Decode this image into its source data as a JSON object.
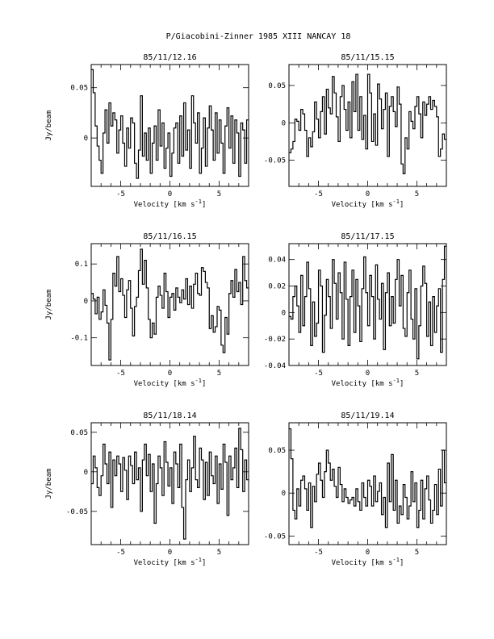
{
  "page_title": "P/Giacobini-Zinner 1985 XIII   NANCAY    18",
  "x_axis_label": "Velocity [km s",
  "x_axis_unit_sup": "-1",
  "x_axis_label_close": "]",
  "y_axis_label": "Jy/beam",
  "chart_data": [
    {
      "type": "line",
      "step": true,
      "title": "85/11/12.16",
      "xlabel": "Velocity [km s-1]",
      "ylabel": "Jy/beam",
      "xlim": [
        -8,
        8
      ],
      "ylim": [
        -0.048,
        0.073
      ],
      "xticks": [
        -5,
        0,
        5
      ],
      "xtick_labels": [
        "-5",
        "0",
        "5"
      ],
      "yticks": [
        0,
        0.05
      ],
      "ytick_labels": [
        "0",
        "0.05"
      ],
      "x": [
        -8.0,
        -7.8,
        -7.6,
        -7.4,
        -7.2,
        -7.0,
        -6.8,
        -6.6,
        -6.4,
        -6.2,
        -6.0,
        -5.8,
        -5.6,
        -5.4,
        -5.2,
        -5.0,
        -4.8,
        -4.6,
        -4.4,
        -4.2,
        -4.0,
        -3.8,
        -3.6,
        -3.4,
        -3.2,
        -3.0,
        -2.8,
        -2.6,
        -2.4,
        -2.2,
        -2.0,
        -1.8,
        -1.6,
        -1.4,
        -1.2,
        -1.0,
        -0.8,
        -0.6,
        -0.4,
        -0.2,
        0.0,
        0.2,
        0.4,
        0.6,
        0.8,
        1.0,
        1.2,
        1.4,
        1.6,
        1.8,
        2.0,
        2.2,
        2.4,
        2.6,
        2.8,
        3.0,
        3.2,
        3.4,
        3.6,
        3.8,
        4.0,
        4.2,
        4.4,
        4.6,
        4.8,
        5.0,
        5.2,
        5.4,
        5.6,
        5.8,
        6.0,
        6.2,
        6.4,
        6.6,
        6.8,
        7.0,
        7.2,
        7.4,
        7.6,
        7.8
      ],
      "y": [
        0.068,
        0.045,
        0.012,
        -0.008,
        -0.022,
        -0.035,
        0.005,
        0.028,
        -0.005,
        0.035,
        0.012,
        0.025,
        0.018,
        -0.015,
        0.008,
        0.022,
        -0.005,
        -0.028,
        0.01,
        -0.01,
        0.02,
        0.015,
        -0.025,
        -0.04,
        -0.012,
        0.042,
        -0.018,
        0.005,
        -0.022,
        0.01,
        -0.035,
        -0.005,
        0.012,
        -0.022,
        0.028,
        -0.008,
        0.015,
        -0.03,
        -0.01,
        0.005,
        -0.038,
        -0.015,
        0.01,
        0.015,
        -0.025,
        0.022,
        -0.018,
        0.035,
        -0.012,
        0.008,
        -0.03,
        0.042,
        0.015,
        -0.005,
        0.025,
        -0.035,
        -0.01,
        0.02,
        -0.028,
        0.01,
        0.032,
        0.008,
        -0.022,
        0.025,
        -0.015,
        0.018,
        -0.005,
        -0.035,
        0.012,
        0.03,
        -0.01,
        0.022,
        -0.025,
        0.018,
        0.005,
        -0.038,
        0.015,
        0.008,
        -0.025,
        0.018
      ]
    },
    {
      "type": "line",
      "step": true,
      "title": "85/11/15.15",
      "xlabel": "Velocity [km s-1]",
      "ylabel": "",
      "xlim": [
        -8,
        8
      ],
      "ylim": [
        -0.085,
        0.078
      ],
      "xticks": [
        -5,
        0,
        5
      ],
      "xtick_labels": [
        "-5",
        "0",
        "5"
      ],
      "yticks": [
        -0.05,
        0,
        0.05
      ],
      "ytick_labels": [
        "-0.05",
        "0",
        "0.05"
      ],
      "x": [
        -8.0,
        -7.8,
        -7.6,
        -7.4,
        -7.2,
        -7.0,
        -6.8,
        -6.6,
        -6.4,
        -6.2,
        -6.0,
        -5.8,
        -5.6,
        -5.4,
        -5.2,
        -5.0,
        -4.8,
        -4.6,
        -4.4,
        -4.2,
        -4.0,
        -3.8,
        -3.6,
        -3.4,
        -3.2,
        -3.0,
        -2.8,
        -2.6,
        -2.4,
        -2.2,
        -2.0,
        -1.8,
        -1.6,
        -1.4,
        -1.2,
        -1.0,
        -0.8,
        -0.6,
        -0.4,
        -0.2,
        0.0,
        0.2,
        0.4,
        0.6,
        0.8,
        1.0,
        1.2,
        1.4,
        1.6,
        1.8,
        2.0,
        2.2,
        2.4,
        2.6,
        2.8,
        3.0,
        3.2,
        3.4,
        3.6,
        3.8,
        4.0,
        4.2,
        4.4,
        4.6,
        4.8,
        5.0,
        5.2,
        5.4,
        5.6,
        5.8,
        6.0,
        6.2,
        6.4,
        6.6,
        6.8,
        7.0,
        7.2,
        7.4,
        7.6,
        7.8
      ],
      "y": [
        -0.04,
        -0.035,
        -0.025,
        0.005,
        0.002,
        -0.01,
        0.018,
        0.012,
        -0.01,
        -0.045,
        -0.02,
        -0.032,
        -0.012,
        0.028,
        0.005,
        -0.02,
        0.015,
        0.035,
        -0.015,
        0.045,
        0.02,
        0.012,
        0.062,
        0.04,
        0.008,
        -0.025,
        0.035,
        0.05,
        0.018,
        -0.01,
        0.028,
        -0.02,
        0.055,
        0.015,
        0.065,
        -0.01,
        0.035,
        -0.022,
        0.01,
        -0.035,
        0.065,
        0.04,
        -0.025,
        0.012,
        -0.03,
        0.052,
        0.032,
        -0.008,
        0.018,
        0.04,
        -0.045,
        0.022,
        0.035,
        0.015,
        -0.005,
        0.048,
        0.025,
        -0.055,
        -0.068,
        -0.02,
        -0.035,
        0.015,
        0.002,
        -0.008,
        0.022,
        0.035,
        0.012,
        -0.02,
        0.028,
        0.01,
        0.025,
        0.035,
        0.018,
        0.03,
        0.022,
        0.008,
        -0.045,
        -0.035,
        -0.015,
        -0.022
      ]
    },
    {
      "type": "line",
      "step": true,
      "title": "85/11/16.15",
      "xlabel": "Velocity [km s-1]",
      "ylabel": "Jy/beam",
      "xlim": [
        -8,
        8
      ],
      "ylim": [
        -0.175,
        0.155
      ],
      "xticks": [
        -5,
        0,
        5
      ],
      "xtick_labels": [
        "-5",
        "0",
        "5"
      ],
      "yticks": [
        -0.1,
        0,
        0.1
      ],
      "ytick_labels": [
        "-0.1",
        "0",
        "0.1"
      ],
      "x": [
        -8.0,
        -7.8,
        -7.6,
        -7.4,
        -7.2,
        -7.0,
        -6.8,
        -6.6,
        -6.4,
        -6.2,
        -6.0,
        -5.8,
        -5.6,
        -5.4,
        -5.2,
        -5.0,
        -4.8,
        -4.6,
        -4.4,
        -4.2,
        -4.0,
        -3.8,
        -3.6,
        -3.4,
        -3.2,
        -3.0,
        -2.8,
        -2.6,
        -2.4,
        -2.2,
        -2.0,
        -1.8,
        -1.6,
        -1.4,
        -1.2,
        -1.0,
        -0.8,
        -0.6,
        -0.4,
        -0.2,
        0.0,
        0.2,
        0.4,
        0.6,
        0.8,
        1.0,
        1.2,
        1.4,
        1.6,
        1.8,
        2.0,
        2.2,
        2.4,
        2.6,
        2.8,
        3.0,
        3.2,
        3.4,
        3.6,
        3.8,
        4.0,
        4.2,
        4.4,
        4.6,
        4.8,
        5.0,
        5.2,
        5.4,
        5.6,
        5.8,
        6.0,
        6.2,
        6.4,
        6.6,
        6.8,
        7.0,
        7.2,
        7.4,
        7.6,
        7.8
      ],
      "y": [
        0.02,
        0.005,
        -0.035,
        0.01,
        -0.05,
        -0.03,
        0.03,
        -0.012,
        -0.06,
        -0.16,
        -0.05,
        0.075,
        0.04,
        0.12,
        0.025,
        0.06,
        0.015,
        -0.045,
        0.03,
        0.055,
        -0.02,
        -0.095,
        -0.015,
        0.01,
        0.082,
        0.14,
        0.045,
        0.11,
        0.035,
        -0.05,
        -0.1,
        -0.06,
        -0.09,
        0.01,
        0.04,
        0.015,
        -0.02,
        0.075,
        0.025,
        -0.045,
        0.01,
        0.02,
        -0.025,
        0.035,
        0.01,
        -0.005,
        0.03,
        0.005,
        0.06,
        -0.01,
        0.04,
        -0.02,
        0.045,
        0.075,
        0.02,
        0.015,
        0.09,
        0.08,
        0.05,
        0.035,
        -0.075,
        -0.04,
        -0.085,
        -0.07,
        -0.015,
        -0.025,
        -0.12,
        -0.14,
        -0.045,
        -0.09,
        0.02,
        0.055,
        0.01,
        0.085,
        0.025,
        0.05,
        -0.01,
        0.12,
        0.055,
        0.035
      ]
    },
    {
      "type": "line",
      "step": true,
      "title": "85/11/17.15",
      "xlabel": "Velocity [km s-1]",
      "ylabel": "",
      "xlim": [
        -8,
        8
      ],
      "ylim": [
        -0.04,
        0.052
      ],
      "xticks": [
        -5,
        0,
        5
      ],
      "xtick_labels": [
        "-5",
        "0",
        "5"
      ],
      "yticks": [
        -0.04,
        -0.02,
        0,
        0.02,
        0.04
      ],
      "ytick_labels": [
        "-0.04",
        "-0.02",
        "0",
        "0.02",
        "0.04"
      ],
      "x": [
        -8.0,
        -7.8,
        -7.6,
        -7.4,
        -7.2,
        -7.0,
        -6.8,
        -6.6,
        -6.4,
        -6.2,
        -6.0,
        -5.8,
        -5.6,
        -5.4,
        -5.2,
        -5.0,
        -4.8,
        -4.6,
        -4.4,
        -4.2,
        -4.0,
        -3.8,
        -3.6,
        -3.4,
        -3.2,
        -3.0,
        -2.8,
        -2.6,
        -2.4,
        -2.2,
        -2.0,
        -1.8,
        -1.6,
        -1.4,
        -1.2,
        -1.0,
        -0.8,
        -0.6,
        -0.4,
        -0.2,
        0.0,
        0.2,
        0.4,
        0.6,
        0.8,
        1.0,
        1.2,
        1.4,
        1.6,
        1.8,
        2.0,
        2.2,
        2.4,
        2.6,
        2.8,
        3.0,
        3.2,
        3.4,
        3.6,
        3.8,
        4.0,
        4.2,
        4.4,
        4.6,
        4.8,
        5.0,
        5.2,
        5.4,
        5.6,
        5.8,
        6.0,
        6.2,
        6.4,
        6.6,
        6.8,
        7.0,
        7.2,
        7.4,
        7.6,
        7.8
      ],
      "y": [
        -0.003,
        -0.005,
        0.012,
        0.02,
        0.005,
        -0.015,
        0.028,
        -0.01,
        0.012,
        0.038,
        0.018,
        -0.025,
        0.008,
        -0.018,
        -0.008,
        0.032,
        0.02,
        -0.03,
        -0.002,
        0.025,
        0.012,
        -0.012,
        0.04,
        0.022,
        -0.005,
        0.03,
        0.015,
        -0.02,
        0.038,
        0.01,
        -0.025,
        0.012,
        0.032,
        -0.015,
        0.025,
        0.005,
        -0.022,
        0.018,
        0.042,
        0.015,
        -0.01,
        0.028,
        0.012,
        -0.02,
        0.036,
        0.01,
        -0.005,
        0.022,
        -0.028,
        0.015,
        0.03,
        -0.01,
        0.012,
        -0.008,
        0.025,
        0.04,
        0.005,
        0.028,
        -0.012,
        -0.018,
        0.015,
        0.032,
        -0.005,
        -0.02,
        0.018,
        -0.035,
        -0.01,
        0.02,
        0.035,
        0.022,
        -0.018,
        0.008,
        -0.025,
        0.012,
        -0.015,
        0.005,
        0.018,
        -0.03,
        0.025,
        0.05
      ]
    },
    {
      "type": "line",
      "step": true,
      "title": "85/11/18.14",
      "xlabel": "Velocity [km s-1]",
      "ylabel": "Jy/beam",
      "xlim": [
        -8,
        8
      ],
      "ylim": [
        -0.092,
        0.062
      ],
      "xticks": [
        -5,
        0,
        5
      ],
      "xtick_labels": [
        "-5",
        "0",
        "5"
      ],
      "yticks": [
        -0.05,
        0,
        0.05
      ],
      "ytick_labels": [
        "-0.05",
        "0",
        "0.05"
      ],
      "x": [
        -8.0,
        -7.8,
        -7.6,
        -7.4,
        -7.2,
        -7.0,
        -6.8,
        -6.6,
        -6.4,
        -6.2,
        -6.0,
        -5.8,
        -5.6,
        -5.4,
        -5.2,
        -5.0,
        -4.8,
        -4.6,
        -4.4,
        -4.2,
        -4.0,
        -3.8,
        -3.6,
        -3.4,
        -3.2,
        -3.0,
        -2.8,
        -2.6,
        -2.4,
        -2.2,
        -2.0,
        -1.8,
        -1.6,
        -1.4,
        -1.2,
        -1.0,
        -0.8,
        -0.6,
        -0.4,
        -0.2,
        0.0,
        0.2,
        0.4,
        0.6,
        0.8,
        1.0,
        1.2,
        1.4,
        1.6,
        1.8,
        2.0,
        2.2,
        2.4,
        2.6,
        2.8,
        3.0,
        3.2,
        3.4,
        3.6,
        3.8,
        4.0,
        4.2,
        4.4,
        4.6,
        4.8,
        5.0,
        5.2,
        5.4,
        5.6,
        5.8,
        6.0,
        6.2,
        6.4,
        6.6,
        6.8,
        7.0,
        7.2,
        7.4,
        7.6,
        7.8
      ],
      "y": [
        -0.015,
        0.02,
        0.005,
        -0.02,
        -0.03,
        -0.005,
        0.035,
        0.01,
        -0.015,
        0.025,
        -0.045,
        0.015,
        -0.005,
        0.02,
        0.01,
        -0.025,
        0.018,
        0.002,
        -0.035,
        0.02,
        0.008,
        -0.015,
        0.025,
        -0.01,
        0.005,
        -0.05,
        0.015,
        0.035,
        -0.005,
        0.022,
        -0.025,
        0.01,
        -0.065,
        -0.015,
        0.02,
        0.005,
        -0.03,
        0.038,
        0.012,
        -0.018,
        0.005,
        -0.04,
        0.025,
        0.01,
        -0.02,
        0.035,
        -0.045,
        -0.085,
        -0.01,
        0.015,
        -0.025,
        0.005,
        0.045,
        -0.01,
        -0.02,
        0.03,
        0.015,
        -0.035,
        0.012,
        -0.03,
        0.025,
        -0.005,
        -0.015,
        0.02,
        -0.04,
        0.01,
        -0.022,
        0.035,
        0.012,
        -0.055,
        0.02,
        -0.01,
        0.005,
        0.03,
        -0.02,
        0.055,
        0.028,
        -0.025,
        0.015,
        -0.01
      ]
    },
    {
      "type": "line",
      "step": true,
      "title": "85/11/19.14",
      "xlabel": "Velocity [km s-1]",
      "ylabel": "",
      "xlim": [
        -8,
        8
      ],
      "ylim": [
        -0.06,
        0.082
      ],
      "xticks": [
        -5,
        0,
        5
      ],
      "xtick_labels": [
        "-5",
        "0",
        "5"
      ],
      "yticks": [
        -0.05,
        0,
        0.05
      ],
      "ytick_labels": [
        "-0.05",
        "0",
        "0.05"
      ],
      "x": [
        -8.0,
        -7.8,
        -7.6,
        -7.4,
        -7.2,
        -7.0,
        -6.8,
        -6.6,
        -6.4,
        -6.2,
        -6.0,
        -5.8,
        -5.6,
        -5.4,
        -5.2,
        -5.0,
        -4.8,
        -4.6,
        -4.4,
        -4.2,
        -4.0,
        -3.8,
        -3.6,
        -3.4,
        -3.2,
        -3.0,
        -2.8,
        -2.6,
        -2.4,
        -2.2,
        -2.0,
        -1.8,
        -1.6,
        -1.4,
        -1.2,
        -1.0,
        -0.8,
        -0.6,
        -0.4,
        -0.2,
        0.0,
        0.2,
        0.4,
        0.6,
        0.8,
        1.0,
        1.2,
        1.4,
        1.6,
        1.8,
        2.0,
        2.2,
        2.4,
        2.6,
        2.8,
        3.0,
        3.2,
        3.4,
        3.6,
        3.8,
        4.0,
        4.2,
        4.4,
        4.6,
        4.8,
        5.0,
        5.2,
        5.4,
        5.6,
        5.8,
        6.0,
        6.2,
        6.4,
        6.6,
        6.8,
        7.0,
        7.2,
        7.4,
        7.6,
        7.8
      ],
      "y": [
        0.075,
        0.04,
        -0.02,
        -0.03,
        0.005,
        -0.015,
        0.015,
        0.02,
        0.005,
        -0.02,
        0.012,
        -0.04,
        0.008,
        -0.01,
        0.022,
        0.035,
        0.015,
        -0.005,
        0.025,
        0.05,
        0.035,
        0.015,
        0.028,
        0.008,
        -0.005,
        0.03,
        0.01,
        -0.01,
        0.005,
        -0.005,
        -0.012,
        -0.008,
        -0.005,
        -0.015,
        0.005,
        -0.01,
        -0.02,
        0.012,
        -0.005,
        -0.015,
        0.015,
        0.008,
        -0.015,
        0.02,
        -0.01,
        0.002,
        0.012,
        -0.025,
        -0.005,
        -0.04,
        0.035,
        -0.01,
        0.045,
        -0.02,
        0.015,
        -0.035,
        -0.015,
        -0.025,
        0.01,
        -0.005,
        -0.03,
        -0.015,
        0.025,
        -0.01,
        0.012,
        -0.04,
        -0.02,
        0.015,
        -0.03,
        0.005,
        0.02,
        -0.008,
        -0.035,
        -0.02,
        0.01,
        -0.025,
        0.028,
        -0.015,
        0.05,
        0.012
      ]
    }
  ]
}
